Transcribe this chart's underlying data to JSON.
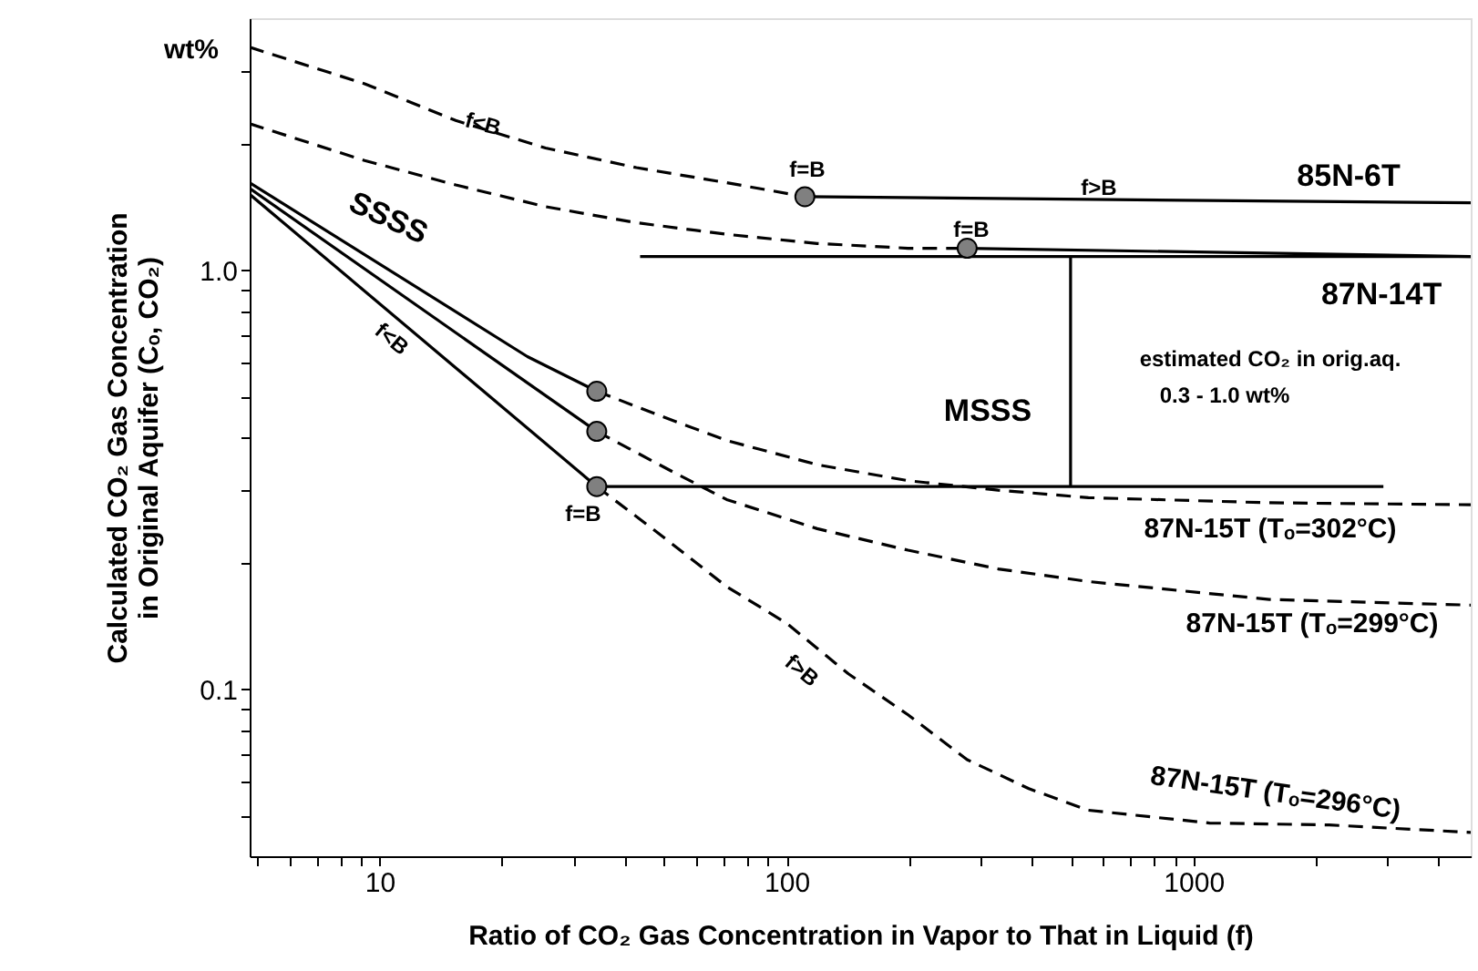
{
  "chart_data": {
    "type": "line",
    "log": "xy",
    "xlabel": "Ratio of CO₂ Gas Concentration in Vapor to That in Liquid (f)",
    "ylabel": "Calculated CO₂ Gas Concentration\nin Original Aquifer (Cₒ, CO₂)",
    "xlim": [
      4.8,
      4800
    ],
    "ylim": [
      0.04,
      4
    ],
    "xticks": [
      {
        "value": 5,
        "label": null
      },
      {
        "value": 6,
        "label": null
      },
      {
        "value": 7,
        "label": null
      },
      {
        "value": 8,
        "label": null
      },
      {
        "value": 9,
        "label": null
      },
      10,
      {
        "value": 20,
        "label": null
      },
      {
        "value": 30,
        "label": null
      },
      {
        "value": 40,
        "label": null
      },
      {
        "value": 50,
        "label": null
      },
      {
        "value": 60,
        "label": null
      },
      {
        "value": 70,
        "label": null
      },
      {
        "value": 80,
        "label": null
      },
      {
        "value": 90,
        "label": null
      },
      100,
      {
        "value": 200,
        "label": null
      },
      {
        "value": 300,
        "label": null
      },
      {
        "value": 400,
        "label": null
      },
      {
        "value": 500,
        "label": null
      },
      {
        "value": 600,
        "label": null
      },
      {
        "value": 700,
        "label": null
      },
      {
        "value": 800,
        "label": null
      },
      {
        "value": 900,
        "label": null
      },
      1000,
      {
        "value": 2000,
        "label": null
      },
      {
        "value": 3000,
        "label": null
      },
      {
        "value": 4000,
        "label": null
      }
    ],
    "yticks": [
      {
        "value": 0.05,
        "label": null
      },
      {
        "value": 0.06,
        "label": null
      },
      {
        "value": 0.07,
        "label": null
      },
      {
        "value": 0.08,
        "label": null
      },
      {
        "value": 0.09,
        "label": null
      },
      0.1,
      {
        "value": 0.2,
        "label": null
      },
      {
        "value": 0.3,
        "label": null
      },
      {
        "value": 0.4,
        "label": null
      },
      {
        "value": 0.5,
        "label": null
      },
      {
        "value": 0.6,
        "label": null
      },
      {
        "value": 0.7,
        "label": null
      },
      {
        "value": 0.8,
        "label": null
      },
      {
        "value": 0.9,
        "label": null
      },
      {
        "value": 1,
        "label": "1.0"
      },
      {
        "value": 2,
        "label": null
      },
      {
        "value": 3,
        "label": null
      }
    ],
    "series": [
      {
        "line_style": "dashed",
        "color": "#000000",
        "x": [
          4.8,
          9.2,
          15.4,
          25.6,
          42.8,
          71.3,
          111
        ],
        "values": [
          3.41,
          2.79,
          2.28,
          1.96,
          1.76,
          1.62,
          1.5
        ]
      },
      {
        "line_style": "solid",
        "color": "#000000",
        "x": [
          111,
          4800
        ],
        "values": [
          1.5,
          1.45
        ]
      },
      {
        "line_style": "dashed",
        "color": "#000000",
        "x": [
          4.8,
          9.2,
          15.4,
          25.6,
          42.8,
          71.3,
          119,
          199,
          278
        ],
        "values": [
          2.24,
          1.83,
          1.6,
          1.42,
          1.3,
          1.22,
          1.16,
          1.13,
          1.13
        ]
      },
      {
        "line_style": "solid",
        "color": "#000000",
        "x": [
          278,
          4800
        ],
        "values": [
          1.13,
          1.08
        ]
      },
      {
        "line_style": "solid",
        "color": "#000000",
        "x": [
          43.7,
          4800
        ],
        "values": [
          1.08,
          1.08
        ]
      },
      {
        "line_style": "solid",
        "color": "#000000",
        "x": [
          4.8,
          23.1,
          34.2
        ],
        "values": [
          1.62,
          0.623,
          0.515
        ]
      },
      {
        "line_style": "solid",
        "color": "#000000",
        "x": [
          4.8,
          34.2
        ],
        "values": [
          1.57,
          0.413
        ]
      },
      {
        "line_style": "solid",
        "color": "#000000",
        "x": [
          4.8,
          34.2
        ],
        "values": [
          1.52,
          0.305
        ]
      },
      {
        "line_style": "dashed",
        "color": "#000000",
        "x": [
          34.2,
          49.9,
          71.3,
          119,
          199,
          331,
          552,
          1537,
          4800
        ],
        "values": [
          0.515,
          0.447,
          0.393,
          0.344,
          0.315,
          0.299,
          0.287,
          0.279,
          0.276
        ]
      },
      {
        "line_style": "dashed",
        "color": "#000000",
        "x": [
          34.2,
          52.5,
          71.3,
          119,
          199,
          331,
          552,
          1537,
          4800
        ],
        "values": [
          0.413,
          0.331,
          0.284,
          0.242,
          0.215,
          0.194,
          0.181,
          0.164,
          0.159
        ]
      },
      {
        "line_style": "dashed",
        "color": "#000000",
        "x": [
          34.2,
          49.3,
          71.3,
          100,
          142,
          199,
          278,
          394,
          552,
          1096,
          2155,
          4800
        ],
        "values": [
          0.305,
          0.233,
          0.176,
          0.144,
          0.109,
          0.087,
          0.068,
          0.058,
          0.0515,
          0.048,
          0.0475,
          0.0456
        ]
      },
      {
        "line_style": "solid",
        "color": "#000000",
        "x": [
          34.2,
          2929
        ],
        "values": [
          0.305,
          0.305
        ]
      },
      {
        "line_style": "solid",
        "color": "#000000",
        "x": [
          499,
          499
        ],
        "values": [
          1.08,
          0.305
        ]
      },
      {
        "type": "scatter",
        "marker": "circle",
        "color": "#808080",
        "x": [
          111,
          278,
          34.2,
          34.2,
          34.2
        ],
        "values": [
          1.5,
          1.13,
          0.515,
          0.413,
          0.305
        ]
      }
    ],
    "annotations": [
      "f<B",
      "f=B",
      "f>B",
      "85N-6T",
      "f=B",
      "87N-14T",
      "SSSS",
      "estimated CO₂  in orig.aq.",
      "0.3 - 1.0 wt%",
      "MSSS",
      "f=B",
      "f<B",
      "f>B",
      "87N-15T (Tₒ=302°C)",
      "87N-15T (Tₒ=299°C)",
      "87N-15T (Tₒ=296°C)",
      "wt%"
    ]
  }
}
